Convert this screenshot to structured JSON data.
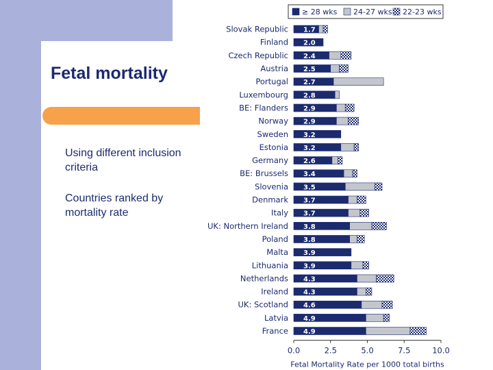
{
  "slide": {
    "title": "Fetal mortality",
    "bullets": [
      "Using different inclusion  criteria",
      "Countries ranked by mortality rate"
    ]
  },
  "chart_data": {
    "type": "bar",
    "orientation": "horizontal",
    "stacked": true,
    "xlabel": "Fetal Mortality Rate per 1000 total births",
    "xlim": [
      0,
      10
    ],
    "xticks": [
      "0.0",
      "2.5",
      "5.0",
      "7.5",
      "10.0"
    ],
    "legend_position": "top",
    "categories": [
      "Slovak Republic",
      "Finland",
      "Czech Republic",
      "Austria",
      "Portugal",
      "Luxembourg",
      "BE: Flanders",
      "Norway",
      "Sweden",
      "Estonia",
      "Germany",
      "BE: Brussels",
      "Slovenia",
      "Denmark",
      "Italy",
      "UK: Northern Ireland",
      "Poland",
      "Malta",
      "Lithuania",
      "Netherlands",
      "Ireland",
      "UK: Scotland",
      "Latvia",
      "France"
    ],
    "value_labels": [
      "1.7",
      "2.0",
      "2.4",
      "2.5",
      "2.7",
      "2.8",
      "2.9",
      "2.9",
      "3.2",
      "3.2",
      "2.6",
      "3.4",
      "3.5",
      "3.7",
      "3.7",
      "3.8",
      "3.8",
      "3.9",
      "3.9",
      "4.3",
      "4.3",
      "4.6",
      "4.9",
      "4.9"
    ],
    "series": [
      {
        "name": "≥ 28 wks",
        "color": "#1c2a6e",
        "pattern": "solid",
        "values": [
          1.7,
          2.0,
          2.4,
          2.5,
          2.7,
          2.8,
          2.9,
          2.9,
          3.2,
          3.2,
          2.6,
          3.4,
          3.5,
          3.7,
          3.7,
          3.8,
          3.8,
          3.9,
          3.9,
          4.3,
          4.3,
          4.6,
          4.9,
          4.9
        ]
      },
      {
        "name": "24-27 wks",
        "color": "#c3c6cc",
        "pattern": "solid",
        "values": [
          0.3,
          0.0,
          0.8,
          0.6,
          3.4,
          0.3,
          0.6,
          0.8,
          0.0,
          0.9,
          0.4,
          0.6,
          2.0,
          0.6,
          0.8,
          1.5,
          0.5,
          0.0,
          0.8,
          1.3,
          0.6,
          1.4,
          1.2,
          3.0
        ]
      },
      {
        "name": "22-23 wks",
        "color": "#1c2a6e",
        "pattern": "checker",
        "values": [
          0.3,
          0.0,
          0.7,
          0.6,
          0.0,
          0.0,
          0.6,
          0.7,
          0.0,
          0.3,
          0.3,
          0.3,
          0.5,
          0.6,
          0.6,
          1.0,
          0.5,
          0.0,
          0.4,
          1.2,
          0.4,
          0.7,
          0.4,
          1.1
        ]
      }
    ]
  }
}
